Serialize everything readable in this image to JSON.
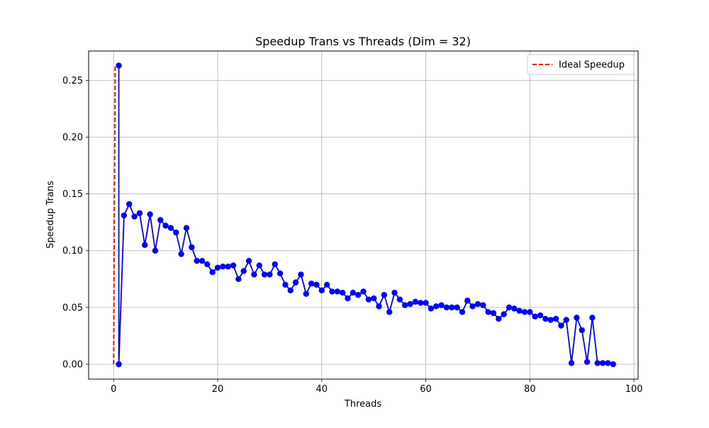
{
  "chart_data": {
    "type": "line",
    "title": "Speedup Trans vs Threads (Dim = 32)",
    "xlabel": "Threads",
    "ylabel": "Speedup Trans",
    "xlim": [
      -4.8,
      100.8
    ],
    "ylim": [
      -0.0131,
      0.2758
    ],
    "x_ticks": [
      0,
      20,
      40,
      60,
      80,
      100
    ],
    "y_ticks": [
      0.0,
      0.05,
      0.1,
      0.15,
      0.2,
      0.25
    ],
    "x_tick_labels": [
      "0",
      "20",
      "40",
      "60",
      "80",
      "100"
    ],
    "y_tick_labels": [
      "0.00",
      "0.05",
      "0.10",
      "0.15",
      "0.20",
      "0.25"
    ],
    "grid": true,
    "legend_position": "top-right",
    "series": [
      {
        "name": "",
        "color": "#0000ff",
        "style": "solid",
        "marker": "circle",
        "x": [
          1,
          1,
          2,
          3,
          4,
          5,
          6,
          7,
          8,
          9,
          10,
          11,
          12,
          13,
          14,
          15,
          16,
          17,
          18,
          19,
          20,
          21,
          22,
          23,
          24,
          25,
          26,
          27,
          28,
          29,
          30,
          31,
          32,
          33,
          34,
          35,
          36,
          37,
          38,
          39,
          40,
          41,
          42,
          43,
          44,
          45,
          46,
          47,
          48,
          49,
          50,
          51,
          52,
          53,
          54,
          55,
          56,
          57,
          58,
          59,
          60,
          61,
          62,
          63,
          64,
          65,
          66,
          67,
          68,
          69,
          70,
          71,
          72,
          73,
          74,
          75,
          76,
          77,
          78,
          79,
          80,
          81,
          82,
          83,
          84,
          85,
          86,
          87,
          88,
          89,
          90,
          91,
          92,
          93,
          94,
          95,
          96
        ],
        "y": [
          0.263,
          0.0,
          0.131,
          0.141,
          0.13,
          0.133,
          0.105,
          0.132,
          0.1,
          0.127,
          0.122,
          0.12,
          0.116,
          0.097,
          0.12,
          0.103,
          0.091,
          0.091,
          0.088,
          0.081,
          0.085,
          0.086,
          0.086,
          0.087,
          0.075,
          0.082,
          0.091,
          0.079,
          0.087,
          0.079,
          0.079,
          0.088,
          0.08,
          0.07,
          0.065,
          0.072,
          0.079,
          0.062,
          0.071,
          0.07,
          0.065,
          0.07,
          0.064,
          0.064,
          0.063,
          0.058,
          0.063,
          0.061,
          0.064,
          0.057,
          0.058,
          0.051,
          0.061,
          0.046,
          0.063,
          0.057,
          0.052,
          0.053,
          0.055,
          0.054,
          0.054,
          0.049,
          0.051,
          0.052,
          0.05,
          0.05,
          0.05,
          0.046,
          0.056,
          0.051,
          0.053,
          0.052,
          0.046,
          0.045,
          0.04,
          0.044,
          0.05,
          0.049,
          0.047,
          0.046,
          0.046,
          0.042,
          0.043,
          0.04,
          0.039,
          0.04,
          0.034,
          0.039,
          0.001,
          0.041,
          0.03,
          0.002,
          0.041,
          0.001,
          0.001,
          0.001,
          0.0
        ]
      },
      {
        "name": "Ideal Speedup",
        "color": "#ff0000",
        "style": "dashed",
        "marker": "none",
        "x": [
          0,
          0.3
        ],
        "y": [
          0.0,
          0.263
        ]
      }
    ]
  }
}
